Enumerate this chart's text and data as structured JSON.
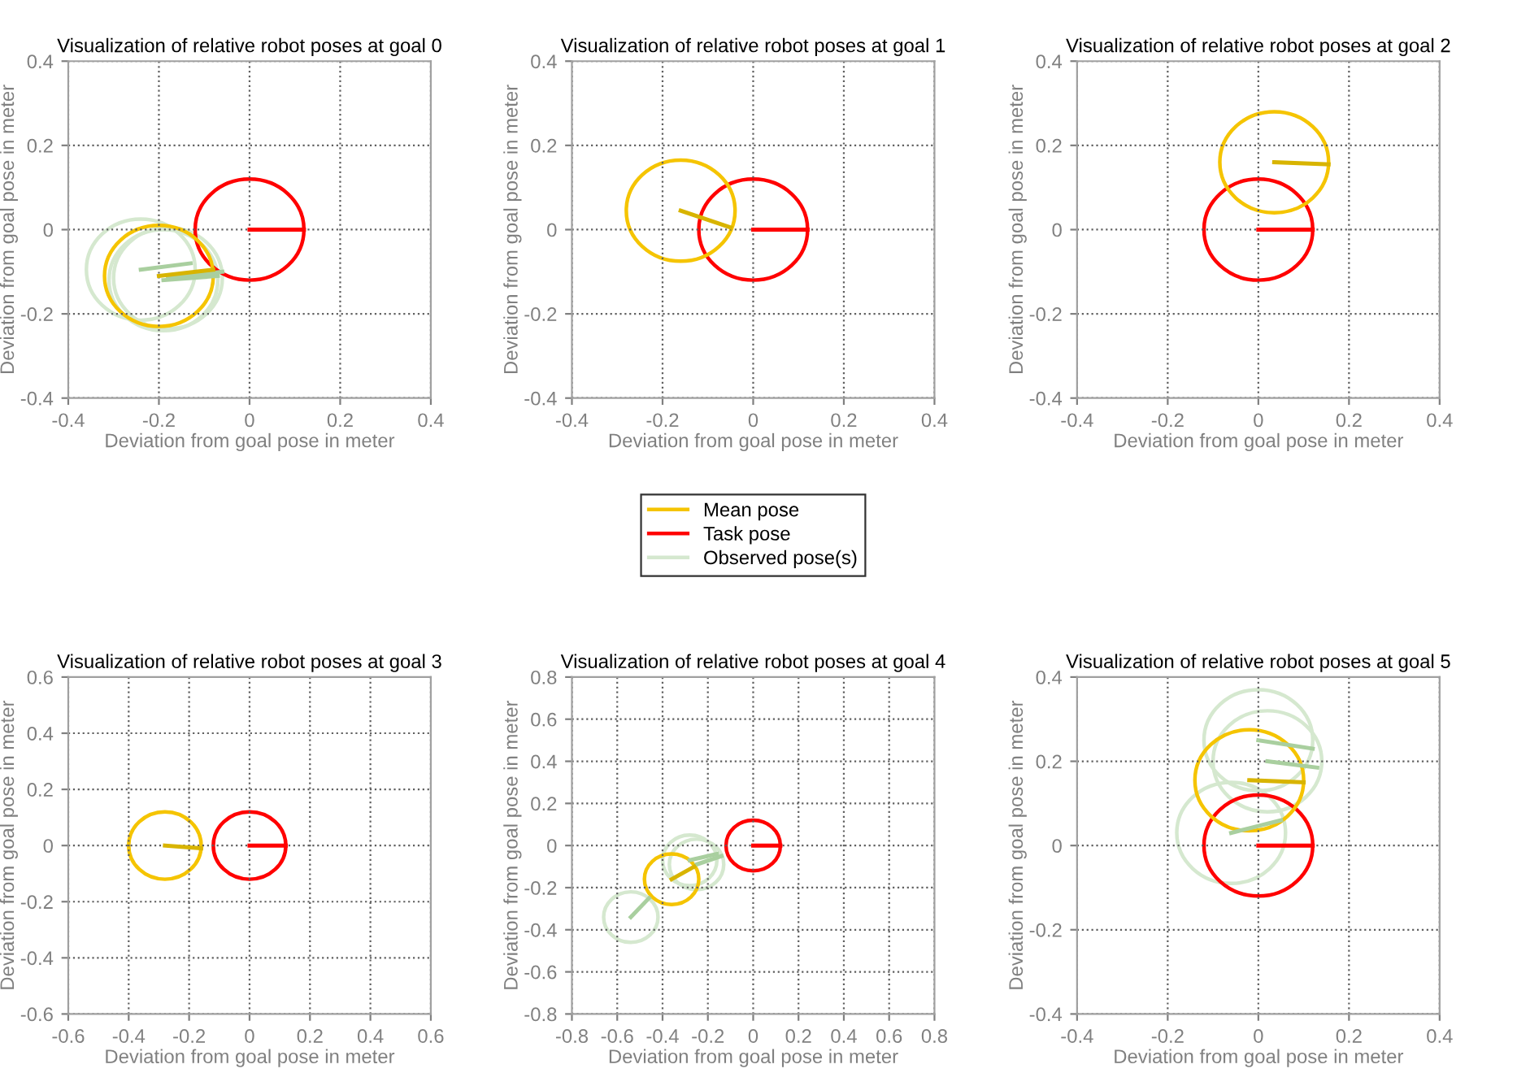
{
  "chart_data": [
    {
      "type": "bubble",
      "title": "Visualization of relative robot poses at goal 0",
      "xlabel": "Deviation from goal pose in meter",
      "ylabel": "Deviation from goal pose in meter",
      "xlim": [
        -0.4,
        0.4
      ],
      "ylim": [
        -0.4,
        0.4
      ],
      "xticks": [
        -0.4,
        -0.2,
        0,
        0.2,
        0.4
      ],
      "yticks": [
        -0.4,
        -0.2,
        0,
        0.2,
        0.4
      ],
      "grid": true,
      "line_style": "solid",
      "series": [
        {
          "type": "bubble",
          "color": "#d5e8cf",
          "x": [
            -0.24,
            -0.19,
            -0.18
          ],
          "values": [
            -0.095,
            -0.12,
            -0.115
          ],
          "sizes": [
            1,
            1,
            1
          ]
        },
        {
          "type": "line",
          "color": "#a9cf9f",
          "x": [
            -0.24,
            -0.13
          ],
          "values": [
            -0.095,
            -0.08
          ]
        },
        {
          "type": "line",
          "color": "#a9cf9f",
          "x": [
            -0.19,
            -0.07
          ],
          "values": [
            -0.12,
            -0.11
          ]
        },
        {
          "type": "line",
          "color": "#a9cf9f",
          "x": [
            -0.18,
            -0.06
          ],
          "values": [
            -0.115,
            -0.1
          ]
        },
        {
          "type": "bubble",
          "color": "#ff0000",
          "x": [
            0
          ],
          "values": [
            0
          ],
          "sizes": [
            1
          ]
        },
        {
          "type": "line",
          "color": "#ff0000",
          "x": [
            0,
            0.12
          ],
          "values": [
            0,
            0
          ]
        },
        {
          "type": "bubble",
          "color": "#f5c400",
          "x": [
            -0.2
          ],
          "values": [
            -0.11
          ],
          "sizes": [
            1
          ]
        },
        {
          "type": "line",
          "color": "#d8b400",
          "x": [
            -0.2,
            -0.08
          ],
          "values": [
            -0.11,
            -0.095
          ]
        }
      ]
    },
    {
      "type": "bubble",
      "title": "Visualization of relative robot poses at goal 1",
      "xlabel": "Deviation from goal pose in meter",
      "ylabel": "Deviation from goal pose in meter",
      "xlim": [
        -0.4,
        0.4
      ],
      "ylim": [
        -0.4,
        0.4
      ],
      "xticks": [
        -0.4,
        -0.2,
        0,
        0.2,
        0.4
      ],
      "yticks": [
        -0.4,
        -0.2,
        0,
        0.2,
        0.4
      ],
      "grid": true,
      "line_style": "solid",
      "series": [
        {
          "type": "bubble",
          "color": "#ff0000",
          "x": [
            0
          ],
          "values": [
            0
          ],
          "sizes": [
            1
          ]
        },
        {
          "type": "line",
          "color": "#ff0000",
          "x": [
            0,
            0.12
          ],
          "values": [
            0,
            0
          ]
        },
        {
          "type": "bubble",
          "color": "#f5c400",
          "x": [
            -0.16
          ],
          "values": [
            0.045
          ],
          "sizes": [
            1
          ]
        },
        {
          "type": "line",
          "color": "#d8b400",
          "x": [
            -0.16,
            -0.05
          ],
          "values": [
            0.045,
            0.005
          ]
        }
      ]
    },
    {
      "type": "bubble",
      "title": "Visualization of relative robot poses at goal 2",
      "xlabel": "Deviation from goal pose in meter",
      "ylabel": "Deviation from goal pose in meter",
      "xlim": [
        -0.4,
        0.4
      ],
      "ylim": [
        -0.4,
        0.4
      ],
      "xticks": [
        -0.4,
        -0.2,
        0,
        0.2,
        0.4
      ],
      "yticks": [
        -0.4,
        -0.2,
        0,
        0.2,
        0.4
      ],
      "grid": true,
      "line_style": "solid",
      "series": [
        {
          "type": "bubble",
          "color": "#ff0000",
          "x": [
            0
          ],
          "values": [
            0
          ],
          "sizes": [
            1
          ]
        },
        {
          "type": "line",
          "color": "#ff0000",
          "x": [
            0,
            0.12
          ],
          "values": [
            0,
            0
          ]
        },
        {
          "type": "bubble",
          "color": "#f5c400",
          "x": [
            0.035
          ],
          "values": [
            0.16
          ],
          "sizes": [
            1
          ]
        },
        {
          "type": "line",
          "color": "#d8b400",
          "x": [
            0.035,
            0.155
          ],
          "values": [
            0.16,
            0.155
          ]
        }
      ]
    },
    {
      "type": "bubble",
      "title": "Visualization of relative robot poses at goal 3",
      "xlabel": "Deviation from goal pose in meter",
      "ylabel": "Deviation from goal pose in meter",
      "xlim": [
        -0.6,
        0.6
      ],
      "ylim": [
        -0.6,
        0.6
      ],
      "xticks": [
        -0.6,
        -0.4,
        -0.2,
        0,
        0.2,
        0.4,
        0.6
      ],
      "yticks": [
        -0.6,
        -0.4,
        -0.2,
        0,
        0.2,
        0.4,
        0.6
      ],
      "grid": true,
      "line_style": "solid",
      "series": [
        {
          "type": "bubble",
          "color": "#ff0000",
          "x": [
            0
          ],
          "values": [
            0
          ],
          "sizes": [
            1
          ]
        },
        {
          "type": "line",
          "color": "#ff0000",
          "x": [
            0,
            0.12
          ],
          "values": [
            0,
            0
          ]
        },
        {
          "type": "bubble",
          "color": "#f5c400",
          "x": [
            -0.28
          ],
          "values": [
            0
          ],
          "sizes": [
            1
          ]
        },
        {
          "type": "line",
          "color": "#d8b400",
          "x": [
            -0.28,
            -0.16
          ],
          "values": [
            0,
            -0.01
          ]
        }
      ]
    },
    {
      "type": "bubble",
      "title": "Visualization of relative robot poses at goal 4",
      "xlabel": "Deviation from goal pose in meter",
      "ylabel": "Deviation from goal pose in meter",
      "xlim": [
        -0.8,
        0.8
      ],
      "ylim": [
        -0.8,
        0.8
      ],
      "xticks": [
        -0.8,
        -0.6,
        -0.4,
        -0.2,
        0,
        0.2,
        0.4,
        0.6,
        0.8
      ],
      "yticks": [
        -0.8,
        -0.6,
        -0.4,
        -0.2,
        0,
        0.2,
        0.4,
        0.6,
        0.8
      ],
      "grid": true,
      "line_style": "solid",
      "legend": "top",
      "series": [
        {
          "type": "bubble",
          "name": "Observed pose(s)",
          "color": "#d5e8cf",
          "x": [
            -0.54,
            -0.28,
            -0.25
          ],
          "values": [
            -0.34,
            -0.07,
            -0.09
          ],
          "sizes": [
            1,
            1,
            1
          ]
        },
        {
          "type": "line",
          "color": "#a9cf9f",
          "x": [
            -0.54,
            -0.46
          ],
          "values": [
            -0.34,
            -0.25
          ]
        },
        {
          "type": "line",
          "color": "#a9cf9f",
          "x": [
            -0.28,
            -0.16
          ],
          "values": [
            -0.07,
            -0.04
          ]
        },
        {
          "type": "line",
          "color": "#a9cf9f",
          "x": [
            -0.25,
            -0.14
          ],
          "values": [
            -0.09,
            -0.05
          ]
        },
        {
          "type": "bubble",
          "name": "Task pose",
          "color": "#ff0000",
          "x": [
            0
          ],
          "values": [
            0
          ],
          "sizes": [
            1
          ]
        },
        {
          "type": "line",
          "color": "#ff0000",
          "x": [
            0,
            0.12
          ],
          "values": [
            0,
            0
          ]
        },
        {
          "type": "bubble",
          "name": "Mean pose",
          "color": "#f5c400",
          "x": [
            -0.36
          ],
          "values": [
            -0.16
          ],
          "sizes": [
            1
          ]
        },
        {
          "type": "line",
          "color": "#d8b400",
          "x": [
            -0.36,
            -0.26
          ],
          "values": [
            -0.16,
            -0.1
          ]
        }
      ]
    },
    {
      "type": "bubble",
      "title": "Visualization of relative robot poses at goal 5",
      "xlabel": "Deviation from goal pose in meter",
      "ylabel": "Deviation from goal pose in meter",
      "xlim": [
        -0.4,
        0.4
      ],
      "ylim": [
        -0.4,
        0.4
      ],
      "xticks": [
        -0.4,
        -0.2,
        0,
        0.2,
        0.4
      ],
      "yticks": [
        -0.4,
        -0.2,
        0,
        0.2,
        0.4
      ],
      "grid": true,
      "line_style": "solid",
      "series": [
        {
          "type": "bubble",
          "color": "#d5e8cf",
          "x": [
            0.0,
            0.02,
            -0.06
          ],
          "values": [
            0.25,
            0.2,
            0.03
          ],
          "sizes": [
            1,
            1,
            1
          ]
        },
        {
          "type": "line",
          "color": "#a9cf9f",
          "x": [
            0.0,
            0.12
          ],
          "values": [
            0.25,
            0.23
          ]
        },
        {
          "type": "line",
          "color": "#a9cf9f",
          "x": [
            0.02,
            0.13
          ],
          "values": [
            0.2,
            0.185
          ]
        },
        {
          "type": "line",
          "color": "#a9cf9f",
          "x": [
            -0.06,
            0.05
          ],
          "values": [
            0.03,
            0.06
          ]
        },
        {
          "type": "bubble",
          "color": "#ff0000",
          "x": [
            0
          ],
          "values": [
            0
          ],
          "sizes": [
            1
          ]
        },
        {
          "type": "line",
          "color": "#ff0000",
          "x": [
            0,
            0.12
          ],
          "values": [
            0,
            0
          ]
        },
        {
          "type": "bubble",
          "color": "#f5c400",
          "x": [
            -0.02
          ],
          "values": [
            0.155
          ],
          "sizes": [
            1
          ]
        },
        {
          "type": "line",
          "color": "#d8b400",
          "x": [
            -0.02,
            0.1
          ],
          "values": [
            0.155,
            0.15
          ]
        }
      ]
    }
  ]
}
